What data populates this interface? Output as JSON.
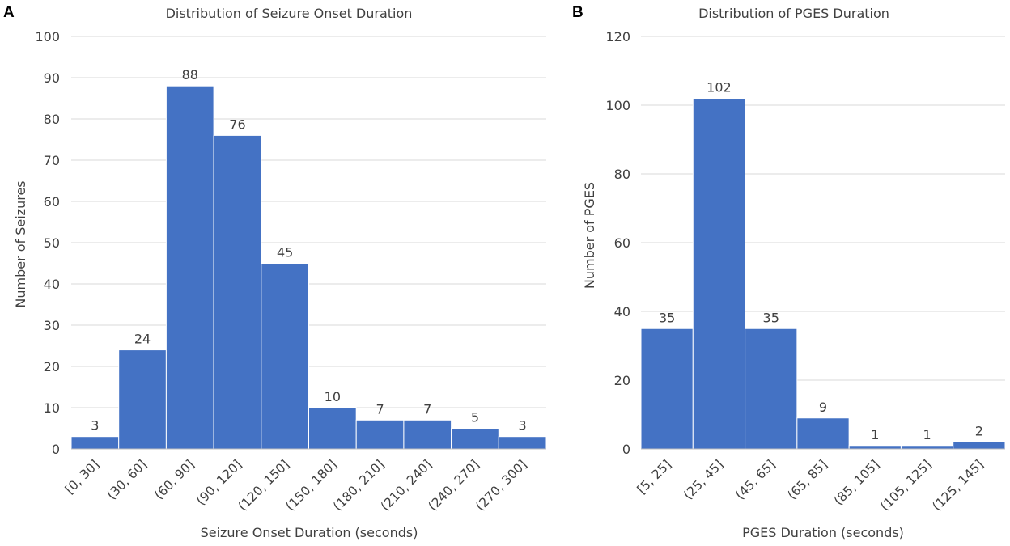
{
  "chart_data": [
    {
      "panel": "A",
      "type": "bar",
      "title": "Distribution of Seizure Onset Duration",
      "xlabel": "Seizure Onset Duration (seconds)",
      "ylabel": "Number of Seizures",
      "categories": [
        "[0, 30]",
        "(30, 60]",
        "(60, 90]",
        "(90, 120]",
        "(120, 150]",
        "(150, 180]",
        "(180, 210]",
        "(210, 240]",
        "(240, 270]",
        "(270, 300]"
      ],
      "values": [
        3,
        24,
        88,
        76,
        45,
        10,
        7,
        7,
        5,
        3
      ],
      "ylim": [
        0,
        100
      ],
      "yticks": [
        0,
        10,
        20,
        30,
        40,
        50,
        60,
        70,
        80,
        90,
        100
      ],
      "grid": true,
      "color": "#4472C4"
    },
    {
      "panel": "B",
      "type": "bar",
      "title": "Distribution of PGES Duration",
      "xlabel": "PGES Duration (seconds)",
      "ylabel": "Number of PGES",
      "categories": [
        "[5, 25]",
        "(25, 45]",
        "(45, 65]",
        "(65, 85]",
        "(85, 105]",
        "(105, 125]",
        "(125, 145]"
      ],
      "values": [
        35,
        102,
        35,
        9,
        1,
        1,
        2
      ],
      "ylim": [
        0,
        120
      ],
      "yticks": [
        0,
        20,
        40,
        60,
        80,
        100,
        120
      ],
      "grid": true,
      "color": "#4472C4"
    }
  ]
}
